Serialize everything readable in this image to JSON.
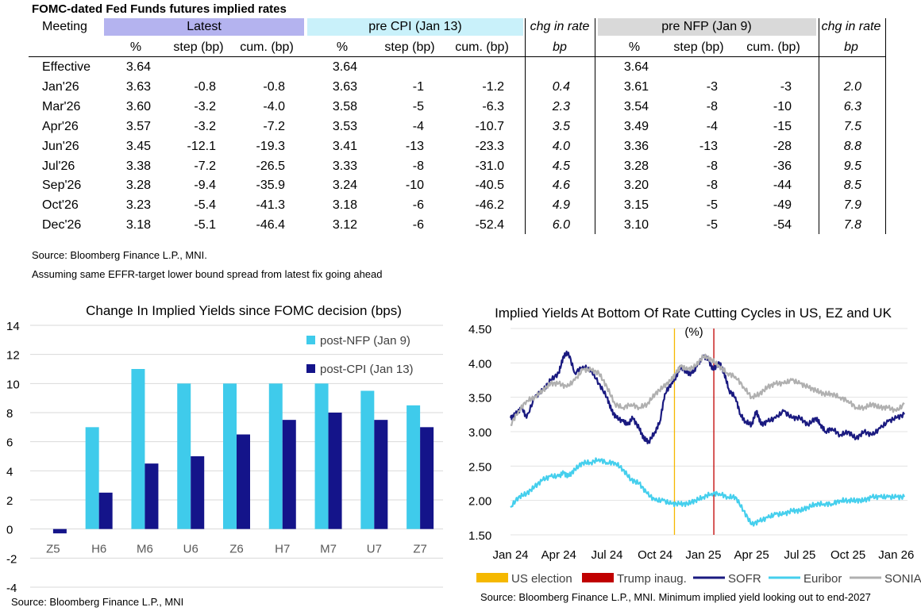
{
  "table": {
    "title": "FOMC-dated Fed Funds futures implied rates",
    "col_meeting": "Meeting",
    "groups": [
      "Latest",
      "pre CPI (Jan 13)",
      "pre NFP (Jan 9)"
    ],
    "chg_label": "chg in rate",
    "chg_unit": "bp",
    "subheaders": [
      "%",
      "step (bp)",
      "cum. (bp)"
    ],
    "colors": {
      "latest": "#b4b3ef",
      "cpi": "#c9f1fa",
      "nfp": "#d9d9d9"
    },
    "rows": [
      {
        "meeting": "Effective",
        "latest": [
          "3.64",
          "",
          ""
        ],
        "cpi": [
          "3.64",
          "",
          ""
        ],
        "chg1": "",
        "nfp": [
          "3.64",
          "",
          ""
        ],
        "chg2": ""
      },
      {
        "meeting": "Jan'26",
        "latest": [
          "3.63",
          "-0.8",
          "-0.8"
        ],
        "cpi": [
          "3.63",
          "-1",
          "-1.2"
        ],
        "chg1": "0.4",
        "nfp": [
          "3.61",
          "-3",
          "-3"
        ],
        "chg2": "2.0"
      },
      {
        "meeting": "Mar'26",
        "latest": [
          "3.60",
          "-3.2",
          "-4.0"
        ],
        "cpi": [
          "3.58",
          "-5",
          "-6.3"
        ],
        "chg1": "2.3",
        "nfp": [
          "3.54",
          "-8",
          "-10"
        ],
        "chg2": "6.3"
      },
      {
        "meeting": "Apr'26",
        "latest": [
          "3.57",
          "-3.2",
          "-7.2"
        ],
        "cpi": [
          "3.53",
          "-4",
          "-10.7"
        ],
        "chg1": "3.5",
        "nfp": [
          "3.49",
          "-4",
          "-15"
        ],
        "chg2": "7.5"
      },
      {
        "meeting": "Jun'26",
        "latest": [
          "3.45",
          "-12.1",
          "-19.3"
        ],
        "cpi": [
          "3.41",
          "-13",
          "-23.3"
        ],
        "chg1": "4.0",
        "nfp": [
          "3.36",
          "-13",
          "-28"
        ],
        "chg2": "8.8"
      },
      {
        "meeting": "Jul'26",
        "latest": [
          "3.38",
          "-7.2",
          "-26.5"
        ],
        "cpi": [
          "3.33",
          "-8",
          "-31.0"
        ],
        "chg1": "4.5",
        "nfp": [
          "3.28",
          "-8",
          "-36"
        ],
        "chg2": "9.5"
      },
      {
        "meeting": "Sep'26",
        "latest": [
          "3.28",
          "-9.4",
          "-35.9"
        ],
        "cpi": [
          "3.24",
          "-10",
          "-40.5"
        ],
        "chg1": "4.6",
        "nfp": [
          "3.20",
          "-8",
          "-44"
        ],
        "chg2": "8.5"
      },
      {
        "meeting": "Oct'26",
        "latest": [
          "3.23",
          "-5.4",
          "-41.3"
        ],
        "cpi": [
          "3.18",
          "-6",
          "-46.2"
        ],
        "chg1": "4.9",
        "nfp": [
          "3.15",
          "-5",
          "-49"
        ],
        "chg2": "7.9"
      },
      {
        "meeting": "Dec'26",
        "latest": [
          "3.18",
          "-5.1",
          "-46.4"
        ],
        "cpi": [
          "3.12",
          "-6",
          "-52.4"
        ],
        "chg1": "6.0",
        "nfp": [
          "3.10",
          "-5",
          "-54"
        ],
        "chg2": "7.8"
      }
    ],
    "source": "Source: Bloomberg Finance L.P., MNI.",
    "note": "Assuming same  EFFR-target lower bound spread from latest fix going ahead"
  },
  "chart_data": [
    {
      "type": "bar",
      "title": "Change In Implied Yields since FOMC decision (bps)",
      "categories": [
        "Z5",
        "H6",
        "M6",
        "U6",
        "Z6",
        "H7",
        "M7",
        "U7",
        "Z7"
      ],
      "series": [
        {
          "name": "post-NFP (Jan 9)",
          "color": "#3fcbeb",
          "values": [
            0,
            7,
            11,
            10,
            10,
            10,
            10,
            9.5,
            8.5
          ]
        },
        {
          "name": "post-CPI (Jan 13)",
          "color": "#14148a",
          "values": [
            -0.3,
            2.5,
            4.5,
            5,
            6.5,
            7.5,
            8,
            7.5,
            7
          ]
        }
      ],
      "ylim": [
        -4,
        14
      ],
      "yticks": [
        "14",
        "12",
        "10",
        "8",
        "6",
        "4",
        "2",
        "0",
        "-2",
        "-4"
      ],
      "legend_position": "top-right",
      "source": "Source: Bloomberg Finance L.P., MNI"
    },
    {
      "type": "line",
      "title": "Implied Yields At Bottom Of Rate Cutting Cycles in US, EZ and UK",
      "unit_label": "(%)",
      "ylim": [
        1.5,
        4.5
      ],
      "yticks": [
        "4.50",
        "4.00",
        "3.50",
        "3.00",
        "2.50",
        "2.00",
        "1.50"
      ],
      "xlim": [
        0,
        24.7
      ],
      "xticks": [
        {
          "label": "Jan 24",
          "x": 0
        },
        {
          "label": "Apr 24",
          "x": 3
        },
        {
          "label": "Jul 24",
          "x": 6
        },
        {
          "label": "Oct 24",
          "x": 9
        },
        {
          "label": "Jan 25",
          "x": 12
        },
        {
          "label": "Apr 25",
          "x": 15
        },
        {
          "label": "Jul 25",
          "x": 18
        },
        {
          "label": "Oct 25",
          "x": 21
        },
        {
          "label": "Jan 26",
          "x": 24
        }
      ],
      "events": [
        {
          "name": "US election",
          "x": 10.2,
          "color": "#f5b800"
        },
        {
          "name": "Trump inaug.",
          "x": 12.65,
          "color": "#c00000"
        }
      ],
      "series": [
        {
          "name": "SOFR",
          "color": "#1a1a80",
          "points": [
            [
              0,
              3.2
            ],
            [
              0.3,
              3.25
            ],
            [
              0.7,
              3.35
            ],
            [
              1,
              3.2
            ],
            [
              1.5,
              3.5
            ],
            [
              2,
              3.6
            ],
            [
              2.5,
              3.75
            ],
            [
              3,
              3.85
            ],
            [
              3.3,
              4.1
            ],
            [
              3.6,
              4.15
            ],
            [
              4,
              3.85
            ],
            [
              4.5,
              3.95
            ],
            [
              5,
              3.9
            ],
            [
              5.5,
              3.7
            ],
            [
              6,
              3.5
            ],
            [
              6.3,
              3.3
            ],
            [
              6.6,
              3.2
            ],
            [
              7,
              3.15
            ],
            [
              7.3,
              3.1
            ],
            [
              7.6,
              3.2
            ],
            [
              8,
              3.05
            ],
            [
              8.3,
              2.9
            ],
            [
              8.6,
              2.85
            ],
            [
              9,
              3.0
            ],
            [
              9.3,
              3.15
            ],
            [
              9.6,
              3.55
            ],
            [
              10,
              3.7
            ],
            [
              10.3,
              3.8
            ],
            [
              10.6,
              3.95
            ],
            [
              11,
              3.85
            ],
            [
              11.3,
              3.85
            ],
            [
              11.6,
              3.95
            ],
            [
              12,
              4.1
            ],
            [
              12.3,
              4.05
            ],
            [
              12.6,
              3.9
            ],
            [
              13,
              4.0
            ],
            [
              13.3,
              3.85
            ],
            [
              13.6,
              3.6
            ],
            [
              14,
              3.5
            ],
            [
              14.3,
              3.25
            ],
            [
              14.6,
              3.15
            ],
            [
              15,
              3.1
            ],
            [
              15.3,
              3.3
            ],
            [
              15.6,
              3.1
            ],
            [
              16,
              3.15
            ],
            [
              16.5,
              3.2
            ],
            [
              17,
              3.3
            ],
            [
              17.5,
              3.2
            ],
            [
              18,
              3.2
            ],
            [
              18.5,
              3.1
            ],
            [
              19,
              3.2
            ],
            [
              19.3,
              3.1
            ],
            [
              19.6,
              3.0
            ],
            [
              20,
              3.05
            ],
            [
              20.5,
              2.95
            ],
            [
              21,
              3.0
            ],
            [
              21.5,
              2.9
            ],
            [
              22,
              3.0
            ],
            [
              22.5,
              2.95
            ],
            [
              23,
              3.05
            ],
            [
              23.5,
              3.15
            ],
            [
              24,
              3.2
            ],
            [
              24.5,
              3.25
            ]
          ]
        },
        {
          "name": "Euribor",
          "color": "#45cfed",
          "points": [
            [
              0,
              1.9
            ],
            [
              0.5,
              2.05
            ],
            [
              1,
              2.1
            ],
            [
              1.5,
              2.2
            ],
            [
              2,
              2.3
            ],
            [
              2.5,
              2.35
            ],
            [
              3,
              2.35
            ],
            [
              3.3,
              2.4
            ],
            [
              3.6,
              2.35
            ],
            [
              4,
              2.45
            ],
            [
              4.5,
              2.55
            ],
            [
              5,
              2.55
            ],
            [
              5.5,
              2.6
            ],
            [
              6,
              2.55
            ],
            [
              6.5,
              2.55
            ],
            [
              7,
              2.45
            ],
            [
              7.5,
              2.3
            ],
            [
              8,
              2.25
            ],
            [
              8.5,
              2.1
            ],
            [
              9,
              2.0
            ],
            [
              9.5,
              2.0
            ],
            [
              10,
              1.95
            ],
            [
              10.5,
              1.95
            ],
            [
              11,
              1.95
            ],
            [
              11.5,
              2.0
            ],
            [
              12,
              2.05
            ],
            [
              12.5,
              2.1
            ],
            [
              13,
              2.1
            ],
            [
              13.5,
              2.05
            ],
            [
              14,
              2.05
            ],
            [
              14.5,
              1.85
            ],
            [
              15,
              1.65
            ],
            [
              15.5,
              1.7
            ],
            [
              16,
              1.75
            ],
            [
              16.5,
              1.8
            ],
            [
              17,
              1.8
            ],
            [
              17.5,
              1.85
            ],
            [
              18,
              1.85
            ],
            [
              18.5,
              1.9
            ],
            [
              19,
              1.95
            ],
            [
              19.5,
              1.95
            ],
            [
              20,
              1.95
            ],
            [
              20.5,
              2.0
            ],
            [
              21,
              2.0
            ],
            [
              21.5,
              2.0
            ],
            [
              22,
              2.0
            ],
            [
              22.5,
              2.05
            ],
            [
              23,
              2.05
            ],
            [
              23.5,
              2.05
            ],
            [
              24,
              2.05
            ],
            [
              24.5,
              2.05
            ]
          ]
        },
        {
          "name": "SONIA",
          "color": "#b0b0b0",
          "points": [
            [
              0,
              3.1
            ],
            [
              0.5,
              3.3
            ],
            [
              1,
              3.45
            ],
            [
              1.5,
              3.5
            ],
            [
              2,
              3.6
            ],
            [
              2.5,
              3.7
            ],
            [
              3,
              3.7
            ],
            [
              3.5,
              3.65
            ],
            [
              4,
              3.75
            ],
            [
              4.5,
              3.9
            ],
            [
              5,
              3.9
            ],
            [
              5.5,
              3.85
            ],
            [
              6,
              3.65
            ],
            [
              6.5,
              3.4
            ],
            [
              7,
              3.35
            ],
            [
              7.5,
              3.4
            ],
            [
              8,
              3.35
            ],
            [
              8.5,
              3.4
            ],
            [
              9,
              3.55
            ],
            [
              9.5,
              3.65
            ],
            [
              10,
              3.75
            ],
            [
              10.3,
              3.85
            ],
            [
              10.6,
              3.95
            ],
            [
              11,
              3.9
            ],
            [
              11.5,
              3.95
            ],
            [
              12,
              4.1
            ],
            [
              12.5,
              4.05
            ],
            [
              13,
              3.95
            ],
            [
              13.5,
              3.85
            ],
            [
              14,
              3.8
            ],
            [
              14.5,
              3.65
            ],
            [
              15,
              3.5
            ],
            [
              15.5,
              3.55
            ],
            [
              16,
              3.65
            ],
            [
              16.5,
              3.7
            ],
            [
              17,
              3.7
            ],
            [
              17.5,
              3.75
            ],
            [
              18,
              3.7
            ],
            [
              18.5,
              3.65
            ],
            [
              19,
              3.6
            ],
            [
              19.5,
              3.55
            ],
            [
              20,
              3.55
            ],
            [
              20.5,
              3.5
            ],
            [
              21,
              3.45
            ],
            [
              21.5,
              3.35
            ],
            [
              22,
              3.35
            ],
            [
              22.5,
              3.4
            ],
            [
              23,
              3.35
            ],
            [
              23.5,
              3.35
            ],
            [
              24,
              3.3
            ],
            [
              24.5,
              3.4
            ]
          ]
        }
      ],
      "source": "Source: Bloomberg Finance L.P., MNI. Minimum implied yield looking out to end-2027"
    }
  ]
}
